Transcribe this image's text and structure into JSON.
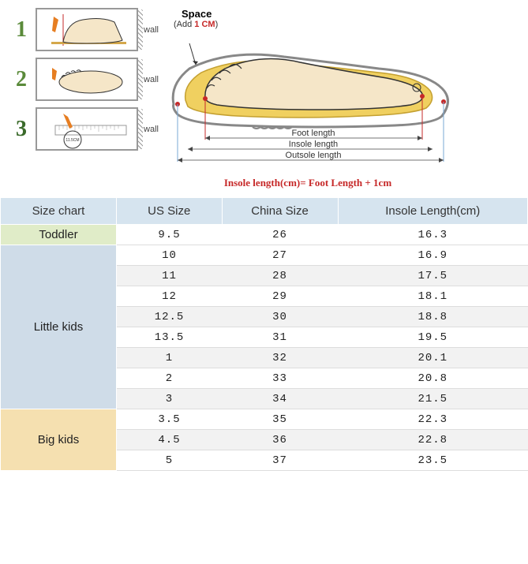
{
  "steps": [
    {
      "num": "1",
      "color": "#5a8a3a"
    },
    {
      "num": "2",
      "color": "#5a8a3a"
    },
    {
      "num": "3",
      "color": "#3a6a2a"
    }
  ],
  "wall_label": "wall",
  "shoe": {
    "space_label": "Space",
    "space_note": "(Add 1 CM)",
    "foot_label": "Foot length",
    "insole_label": "Insole length",
    "outsole_label": "Outsole length",
    "formula": "Insole length(cm)= Foot Length + 1cm",
    "one_cm": "1 CM"
  },
  "table": {
    "headers": [
      "Size chart",
      "US Size",
      "China Size",
      "Insole Length(cm)"
    ],
    "groups": [
      {
        "name": "Toddler",
        "cls": "cat-toddler",
        "rows": [
          [
            "9.5",
            "26",
            "16.3"
          ]
        ]
      },
      {
        "name": "Little kids",
        "cls": "cat-little",
        "rows": [
          [
            "10",
            "27",
            "16.9"
          ],
          [
            "11",
            "28",
            "17.5"
          ],
          [
            "12",
            "29",
            "18.1"
          ],
          [
            "12.5",
            "30",
            "18.8"
          ],
          [
            "13.5",
            "31",
            "19.5"
          ],
          [
            "1",
            "32",
            "20.1"
          ],
          [
            "2",
            "33",
            "20.8"
          ],
          [
            "3",
            "34",
            "21.5"
          ]
        ]
      },
      {
        "name": "Big kids",
        "cls": "cat-big",
        "rows": [
          [
            "3.5",
            "35",
            "22.3"
          ],
          [
            "4.5",
            "36",
            "22.8"
          ],
          [
            "5",
            "37",
            "23.5"
          ]
        ]
      }
    ]
  },
  "ruler_mark": "11.5CM",
  "colors": {
    "header_bg": "#d6e4ef",
    "toddler_bg": "#e0ecc8",
    "little_bg": "#cfdce8",
    "big_bg": "#f5e0b0",
    "formula": "#c62828"
  }
}
